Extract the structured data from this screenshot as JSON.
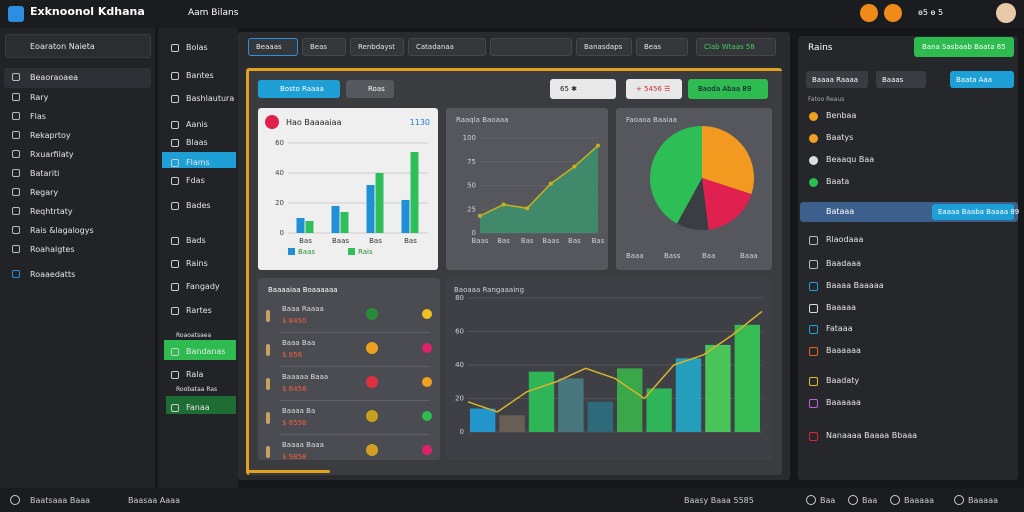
{
  "app": {
    "title": "Exknoonol Kdhana",
    "section": "Aam Bilans",
    "status": "ɵ5 ɵ 5"
  },
  "sidebar": {
    "dropdown": "Eoaraton Naieta",
    "items": [
      "Beaoraoaea",
      "Rary",
      "Flas",
      "Rekaprtoy",
      "Rxuarfilaty",
      "Batariti",
      "Regary",
      "Reqhtrtaty",
      "Rais &lagalogys",
      "Roahalgtes",
      "Roaaedatts"
    ]
  },
  "subnav": {
    "items": [
      "Bolas",
      "Bantes",
      "Bashlautura",
      "Aanis",
      "Blaas",
      "Flams",
      "Fdas",
      "Bades",
      "Bads",
      "Rains",
      "Fangady",
      "Rartes",
      "Roaoatsaea",
      "Bandanas",
      "Rala",
      "Roobataa Ras",
      "Fanaa"
    ]
  },
  "toolbar": {
    "tabs": [
      "Beaaas",
      "Beas",
      "Renbdayst",
      "Catadanaa",
      "Banasdaps",
      "Beas",
      "Clab Wtaas 58"
    ]
  },
  "main": {
    "buttons": [
      "Bosto Raaaa",
      "Roas"
    ],
    "actions": [
      "65 ✱",
      "+ 5456 ☰",
      "Baoda Abaa 89"
    ]
  },
  "chart_data": [
    {
      "type": "bar",
      "title": "Hao Baaaaiaa",
      "subtitle": "1130",
      "categories": [
        "Bas",
        "Baas",
        "Bas",
        "Bas"
      ],
      "series": [
        {
          "name": "Baas",
          "color": "#1f8fd6",
          "values": [
            10,
            18,
            32,
            22
          ]
        },
        {
          "name": "Rais",
          "color": "#2fbf5a",
          "values": [
            8,
            14,
            40,
            54
          ]
        }
      ],
      "ylim": [
        0,
        60
      ],
      "yticks": [
        0,
        20,
        40,
        60
      ]
    },
    {
      "type": "area",
      "title": "Raaqla Baoaaa",
      "categories": [
        "Baas",
        "Bas",
        "Bas",
        "Baas",
        "Bas",
        "Bas"
      ],
      "values": [
        18,
        30,
        26,
        52,
        70,
        92
      ],
      "color": "#c7b21e",
      "ylim": [
        0,
        100
      ],
      "yticks": [
        0,
        25,
        50,
        75,
        100
      ]
    },
    {
      "type": "pie",
      "title": "Faoaoa Baaiaa",
      "categories": [
        "Baaa",
        "Bass",
        "Baa",
        "Baaa"
      ],
      "values": [
        30,
        18,
        10,
        42
      ],
      "colors": [
        "#f29a1f",
        "#e0204f",
        "#3a3d42",
        "#2dbf55"
      ]
    },
    {
      "type": "combo",
      "title": "Baoaaa Rangaaaing",
      "values": [
        14,
        10,
        36,
        32,
        18,
        38,
        26,
        44,
        52,
        64
      ],
      "colors": [
        "#1fa0d8",
        "#6b6358",
        "#2ec25a",
        "#4a7d86",
        "#2d6f80",
        "#3ab34a",
        "#2ec25a",
        "#22a8c8",
        "#4ad35a",
        "#36c954"
      ],
      "line": [
        18,
        12,
        24,
        30,
        38,
        32,
        20,
        40,
        46,
        58,
        72
      ],
      "line_color": "#d9b42a",
      "ylim": [
        0,
        80
      ],
      "yticks": [
        0,
        20,
        40,
        60,
        80
      ]
    }
  ],
  "list": {
    "title": "Baaaaiaa Boaaaaaa",
    "items": [
      "Baaa Raaaa",
      "Baaa Baa",
      "Baaaaa Baaa",
      "Baaaa Ba",
      "Baaaa Baaa"
    ],
    "subs": [
      "$ 8450",
      "$ 858",
      "$ 6458",
      "$ 8558",
      "$ 9858"
    ]
  },
  "right": {
    "title": "Rains",
    "button": "Bana Sasbaab Baata 85",
    "filters": [
      "Baaaa Raaaa",
      "Baaas",
      "Baata Aaa"
    ],
    "note": "Fatoo Reaus",
    "items": [
      "Benbaa",
      "Baatys",
      "Beaaqu Baa",
      "Baata"
    ],
    "bar": "Bataaa",
    "bar_button": "Eaaaa Baaba Baaaa 89",
    "list": [
      "Rlaodaaa",
      "Baadaaa",
      "Baaaa Baaaaa",
      "Baaaaa",
      "Fataaa",
      "Baaaaaa",
      "Baadaty",
      "Baaaaaa",
      "Nanaaaa Baaaa Bbaaa"
    ]
  },
  "footer": {
    "left": "Baatsaaa Baaa",
    "mid": "Baasaa Aaaa",
    "status": "Baasy Baaa 5585",
    "links": [
      "Baa",
      "Baa",
      "Baaaaa",
      "Baaaaa"
    ]
  }
}
